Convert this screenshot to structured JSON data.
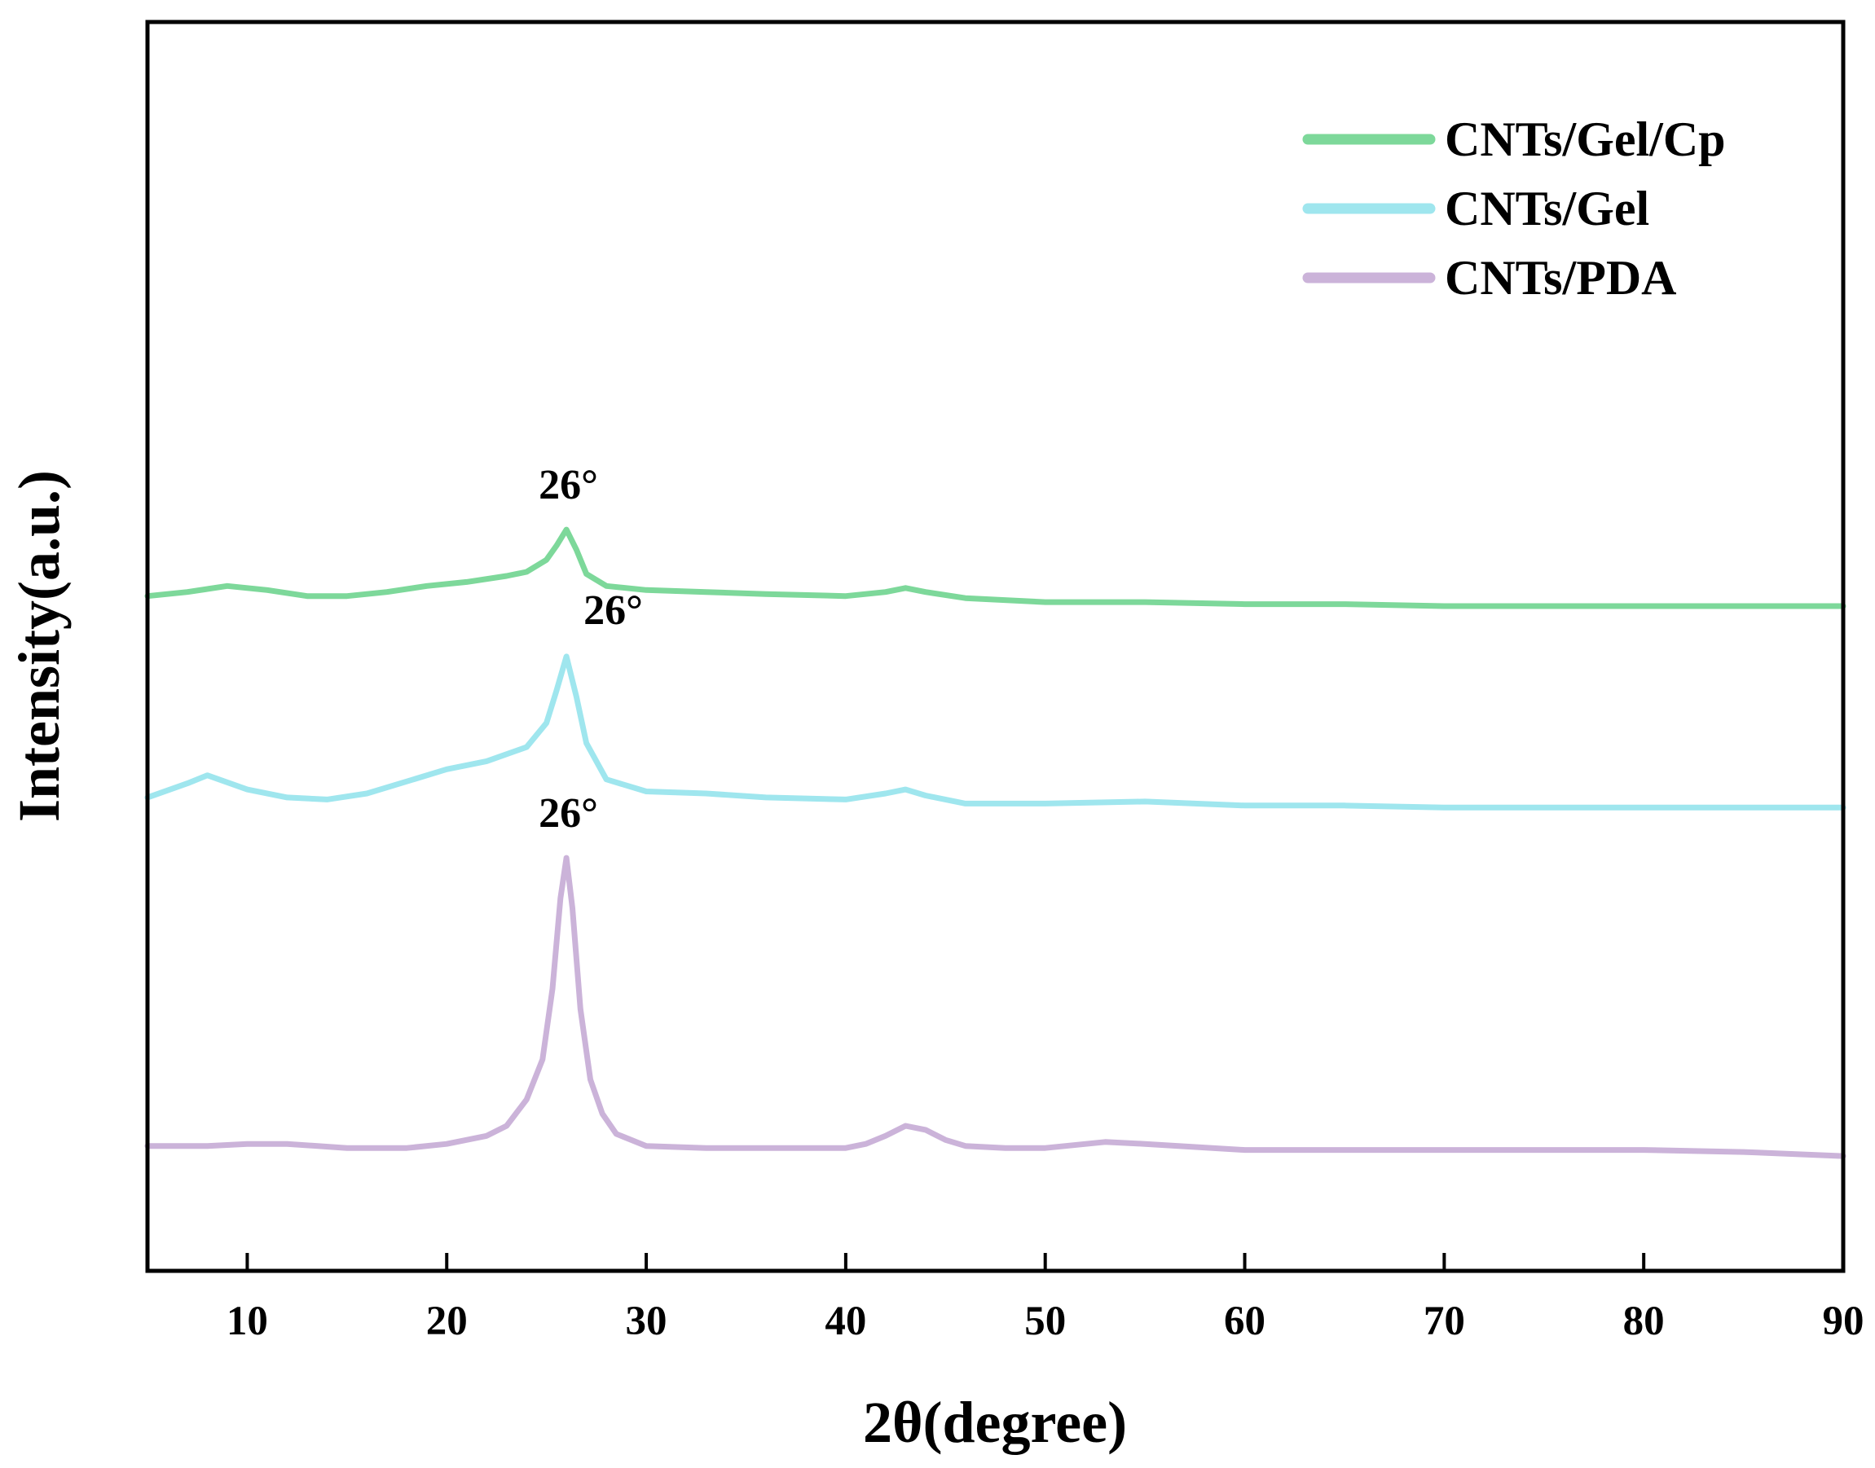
{
  "chart_data": {
    "type": "line",
    "title": "",
    "xlabel": "2θ(degree)",
    "ylabel": "Intensity(a.u.)",
    "xlim": [
      5,
      90
    ],
    "ylim": [
      0,
      6.2
    ],
    "x_ticks": [
      10,
      20,
      30,
      40,
      50,
      60,
      70,
      80,
      90
    ],
    "y_ticks_shown": false,
    "grid": false,
    "legend_position": "top-right",
    "series": [
      {
        "name": "CNTs/Gel/Cp",
        "color": "#7dd89a",
        "x": [
          5,
          7,
          9,
          11,
          13,
          15,
          17,
          19,
          21,
          23,
          24,
          25,
          25.5,
          26,
          26.5,
          27,
          28,
          30,
          33,
          36,
          40,
          42,
          43,
          44,
          46,
          50,
          55,
          60,
          65,
          70,
          75,
          80,
          85,
          90
        ],
        "y": [
          3.35,
          3.37,
          3.4,
          3.38,
          3.35,
          3.35,
          3.37,
          3.4,
          3.42,
          3.45,
          3.47,
          3.53,
          3.6,
          3.68,
          3.58,
          3.46,
          3.4,
          3.38,
          3.37,
          3.36,
          3.35,
          3.37,
          3.39,
          3.37,
          3.34,
          3.32,
          3.32,
          3.31,
          3.31,
          3.3,
          3.3,
          3.3,
          3.3,
          3.3
        ]
      },
      {
        "name": "CNTs/Gel",
        "color": "#9fe6ee",
        "x": [
          5,
          7,
          8,
          10,
          12,
          14,
          16,
          18,
          20,
          22,
          24,
          25,
          25.5,
          26,
          26.5,
          27,
          28,
          30,
          33,
          36,
          40,
          42,
          43,
          44,
          46,
          50,
          55,
          60,
          65,
          70,
          75,
          80,
          85,
          90
        ],
        "y": [
          2.35,
          2.42,
          2.46,
          2.39,
          2.35,
          2.34,
          2.37,
          2.43,
          2.49,
          2.53,
          2.6,
          2.72,
          2.88,
          3.05,
          2.85,
          2.62,
          2.44,
          2.38,
          2.37,
          2.35,
          2.34,
          2.37,
          2.39,
          2.36,
          2.32,
          2.32,
          2.33,
          2.31,
          2.31,
          2.3,
          2.3,
          2.3,
          2.3,
          2.3
        ]
      },
      {
        "name": "CNTs/PDA",
        "color": "#cbb3d9",
        "x": [
          5,
          8,
          10,
          12,
          15,
          18,
          20,
          22,
          23,
          24,
          24.8,
          25.3,
          25.7,
          26,
          26.3,
          26.7,
          27.2,
          27.8,
          28.5,
          30,
          33,
          36,
          40,
          41,
          42,
          43,
          44,
          45,
          46,
          48,
          50,
          53,
          55,
          60,
          65,
          70,
          75,
          80,
          85,
          90
        ],
        "y": [
          0.62,
          0.62,
          0.63,
          0.63,
          0.61,
          0.61,
          0.63,
          0.67,
          0.72,
          0.85,
          1.05,
          1.4,
          1.85,
          2.05,
          1.8,
          1.3,
          0.95,
          0.78,
          0.68,
          0.62,
          0.61,
          0.61,
          0.61,
          0.63,
          0.67,
          0.72,
          0.7,
          0.65,
          0.62,
          0.61,
          0.61,
          0.64,
          0.63,
          0.6,
          0.6,
          0.6,
          0.6,
          0.6,
          0.59,
          0.57
        ]
      }
    ],
    "annotations": [
      {
        "text": "26°",
        "x": 26.1,
        "y": 3.68,
        "series": "CNTs/Gel/Cp"
      },
      {
        "text": "26°",
        "x": 26.1,
        "y": 3.05,
        "series": "CNTs/Gel"
      },
      {
        "text": "26°",
        "x": 26.1,
        "y": 2.05,
        "series": "CNTs/PDA"
      }
    ]
  }
}
